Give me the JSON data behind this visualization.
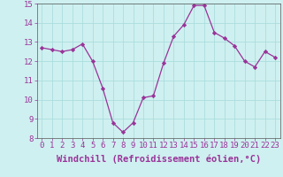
{
  "x": [
    0,
    1,
    2,
    3,
    4,
    5,
    6,
    7,
    8,
    9,
    10,
    11,
    12,
    13,
    14,
    15,
    16,
    17,
    18,
    19,
    20,
    21,
    22,
    23
  ],
  "y": [
    12.7,
    12.6,
    12.5,
    12.6,
    12.9,
    12.0,
    10.6,
    8.8,
    8.3,
    8.8,
    10.1,
    10.2,
    11.9,
    13.3,
    13.9,
    14.9,
    14.9,
    13.5,
    13.2,
    12.8,
    12.0,
    11.7,
    12.5,
    12.2
  ],
  "xlim": [
    -0.5,
    23.5
  ],
  "ylim": [
    8,
    15
  ],
  "yticks": [
    8,
    9,
    10,
    11,
    12,
    13,
    14,
    15
  ],
  "xticks": [
    0,
    1,
    2,
    3,
    4,
    5,
    6,
    7,
    8,
    9,
    10,
    11,
    12,
    13,
    14,
    15,
    16,
    17,
    18,
    19,
    20,
    21,
    22,
    23
  ],
  "xlabel": "Windchill (Refroidissement éolien,°C)",
  "line_color": "#993399",
  "marker": "D",
  "marker_size": 2.2,
  "bg_color": "#cff0f0",
  "grid_color": "#aadddd",
  "xlabel_fontsize": 7.5,
  "tick_fontsize": 6.5,
  "label_color": "#993399"
}
